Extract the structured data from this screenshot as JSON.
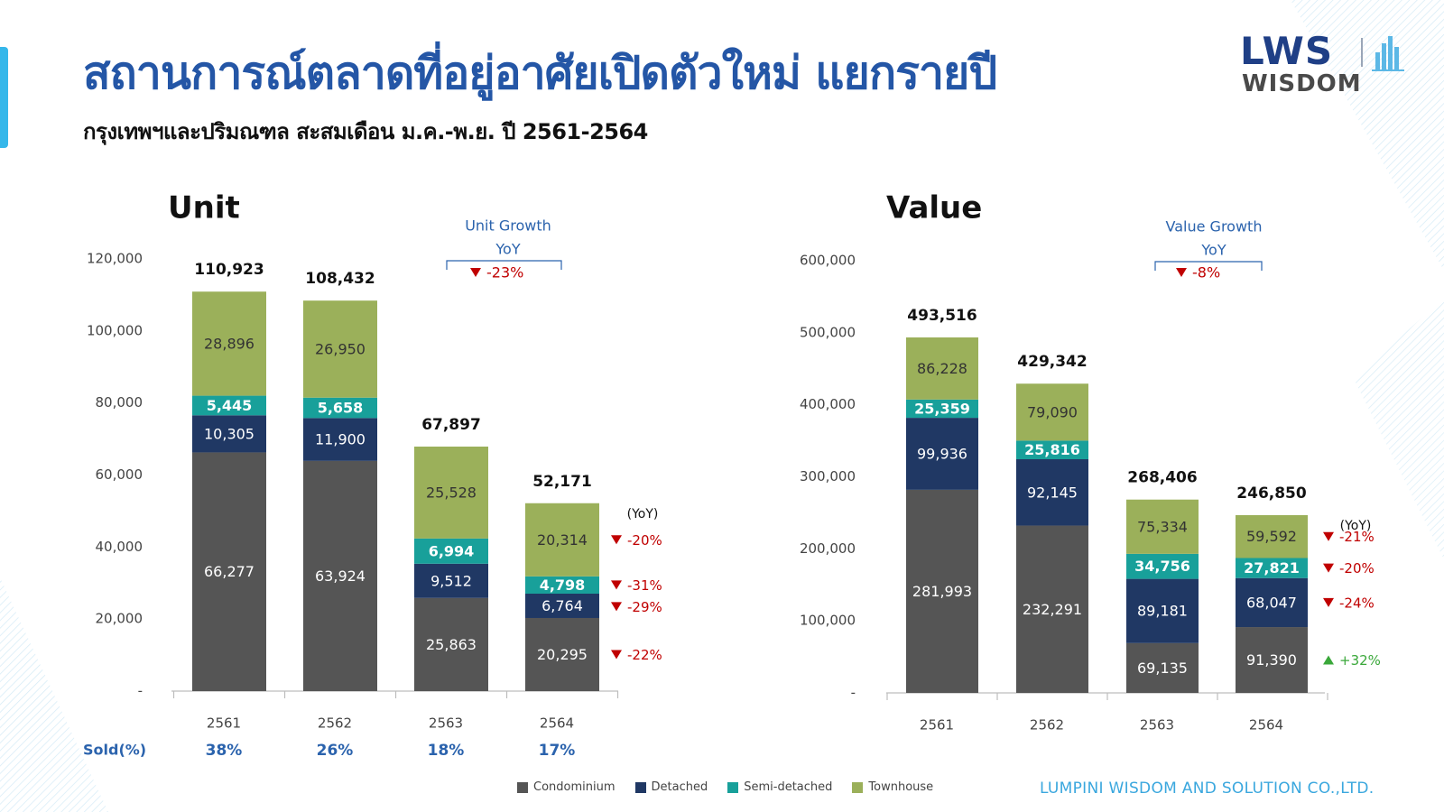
{
  "page": {
    "title": "สถานการณ์ตลาดที่อยู่อาศัยเปิดตัวใหม่ แยกรายปี",
    "subtitle": "กรุงเทพฯและปริมณฑล สะสมเดือน ม.ค.-พ.ย. ปี 2561-2564",
    "company": "LUMPINI WISDOM AND SOLUTION CO.,LTD.",
    "logo_top": "LWS",
    "logo_bottom": "WISDOM"
  },
  "colors": {
    "Condominium": "#555555",
    "Detached": "#203864",
    "Semi-detached": "#18a09a",
    "Townhouse": "#9bb05a",
    "decline": "#c00000",
    "increase": "#3aa83a",
    "growth_text": "#2b63ad"
  },
  "legend": [
    "Condominium",
    "Detached",
    "Semi-detached",
    "Townhouse"
  ],
  "chart_data": [
    {
      "type": "bar",
      "stacked": true,
      "title": "Unit",
      "categories": [
        "2561",
        "2562",
        "2563",
        "2564"
      ],
      "y_tick_labels": [
        "-",
        "20,000",
        "40,000",
        "60,000",
        "80,000",
        "100,000",
        "120,000"
      ],
      "ylim": [
        0,
        120000
      ],
      "series": [
        {
          "name": "Condominium",
          "values": [
            66277,
            63924,
            25863,
            20295
          ],
          "labels": [
            "66,277",
            "63,924",
            "25,863",
            "20,295"
          ]
        },
        {
          "name": "Detached",
          "values": [
            10305,
            11900,
            9512,
            6764
          ],
          "labels": [
            "10,305",
            "11,900",
            "9,512",
            "6,764"
          ]
        },
        {
          "name": "Semi-detached",
          "values": [
            5445,
            5658,
            6994,
            4798
          ],
          "labels": [
            "5,445",
            "5,658",
            "6,994",
            "4,798"
          ]
        },
        {
          "name": "Townhouse",
          "values": [
            28896,
            26950,
            25528,
            20314
          ],
          "labels": [
            "28,896",
            "26,950",
            "25,528",
            "20,314"
          ]
        }
      ],
      "totals": [
        110923,
        108432,
        67897,
        52171
      ],
      "total_labels": [
        "110,923",
        "108,432",
        "67,897",
        "52,171"
      ],
      "growth_title": [
        "Unit Growth",
        "YoY"
      ],
      "growth_value": "-23%",
      "yoy_header": "(YoY)",
      "yoy": [
        {
          "series": "Townhouse",
          "value": "-20%",
          "direction": "down"
        },
        {
          "series": "Semi-detached",
          "value": "-31%",
          "direction": "down"
        },
        {
          "series": "Detached",
          "value": "-29%",
          "direction": "down"
        },
        {
          "series": "Condominium",
          "value": "-22%",
          "direction": "down"
        }
      ],
      "sold_label": "Sold(%)",
      "sold": [
        "38%",
        "26%",
        "18%",
        "17%"
      ]
    },
    {
      "type": "bar",
      "stacked": true,
      "title": "Value",
      "categories": [
        "2561",
        "2562",
        "2563",
        "2564"
      ],
      "y_tick_labels": [
        "-",
        "100,000",
        "200,000",
        "300,000",
        "400,000",
        "500,000",
        "600,000"
      ],
      "ylim": [
        0,
        600000
      ],
      "series": [
        {
          "name": "Condominium",
          "values": [
            281993,
            232291,
            69135,
            91390
          ],
          "labels": [
            "281,993",
            "232,291",
            "69,135",
            "91,390"
          ]
        },
        {
          "name": "Detached",
          "values": [
            99936,
            92145,
            89181,
            68047
          ],
          "labels": [
            "99,936",
            "92,145",
            "89,181",
            "68,047"
          ]
        },
        {
          "name": "Semi-detached",
          "values": [
            25359,
            25816,
            34756,
            27821
          ],
          "labels": [
            "25,359",
            "25,816",
            "34,756",
            "27,821"
          ]
        },
        {
          "name": "Townhouse",
          "values": [
            86228,
            79090,
            75334,
            59592
          ],
          "labels": [
            "86,228",
            "79,090",
            "75,334",
            "59,592"
          ]
        }
      ],
      "totals": [
        493516,
        429342,
        268406,
        246850
      ],
      "total_labels": [
        "493,516",
        "429,342",
        "268,406",
        "246,850"
      ],
      "growth_title": [
        "Value Growth",
        "YoY"
      ],
      "growth_value": "-8%",
      "yoy_header": "(YoY)",
      "yoy": [
        {
          "series": "Townhouse",
          "value": "-21%",
          "direction": "down"
        },
        {
          "series": "Semi-detached",
          "value": "-20%",
          "direction": "down"
        },
        {
          "series": "Detached",
          "value": "-24%",
          "direction": "down"
        },
        {
          "series": "Condominium",
          "value": "+32%",
          "direction": "up"
        }
      ]
    }
  ]
}
